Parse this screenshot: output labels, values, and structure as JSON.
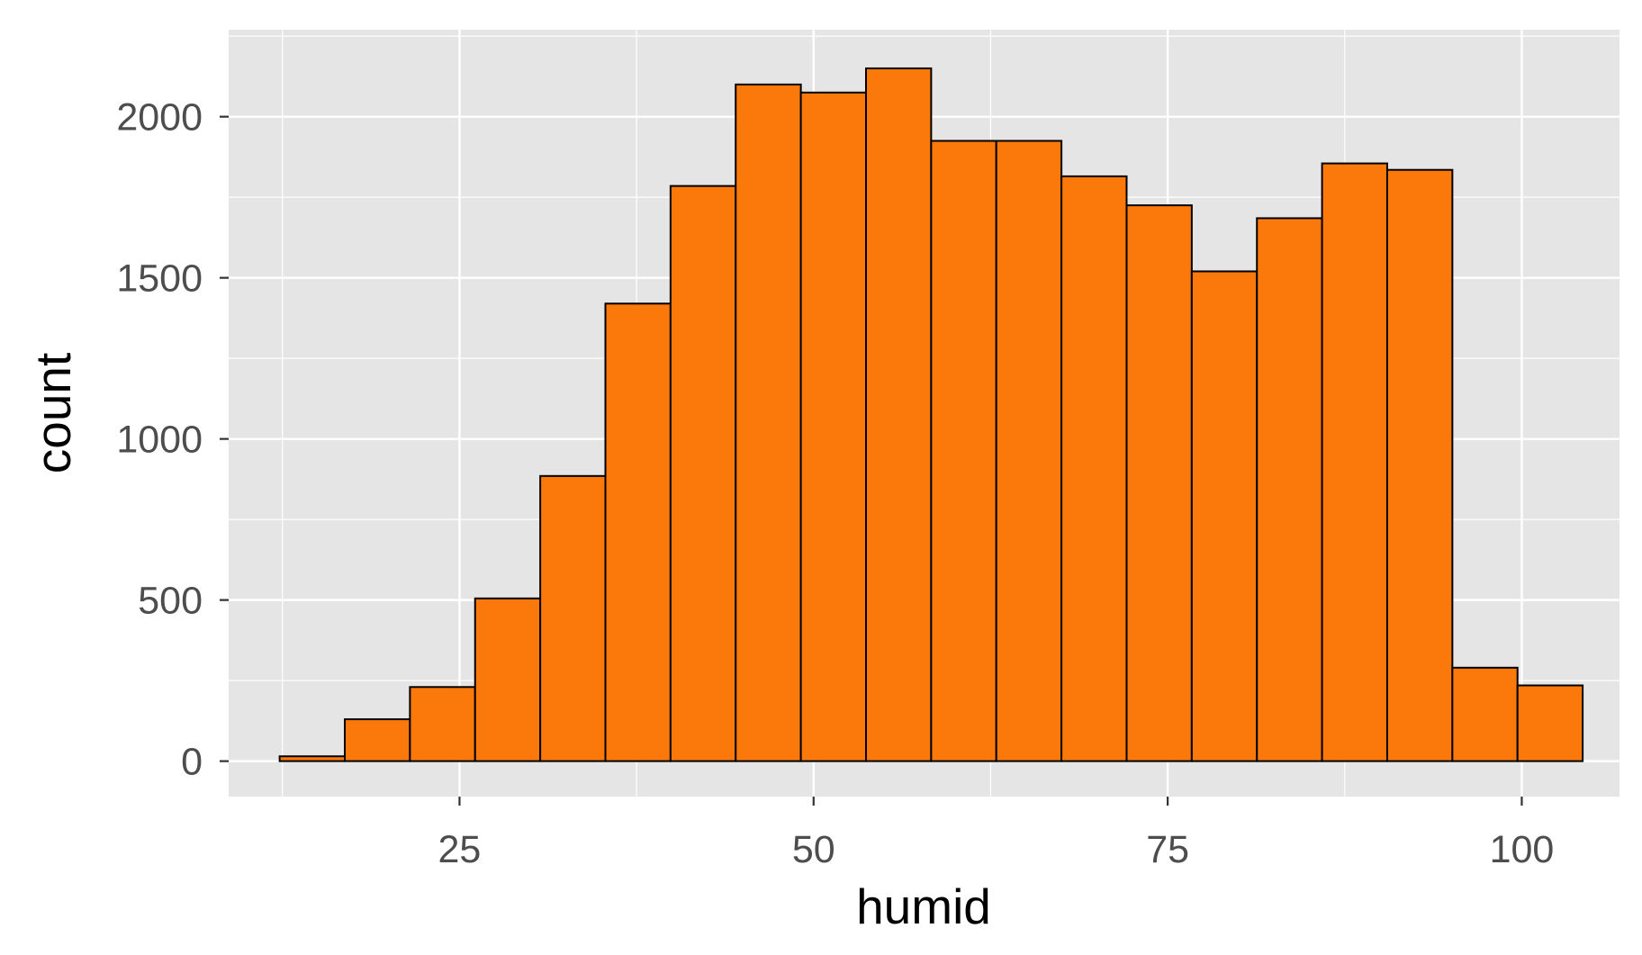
{
  "chart_data": {
    "type": "bar",
    "subtype": "histogram",
    "xlabel": "humid",
    "ylabel": "count",
    "xlim": [
      8.7,
      106.9
    ],
    "ylim": [
      -110,
      2270
    ],
    "x_ticks": [
      25,
      50,
      75,
      100
    ],
    "y_ticks": [
      0,
      500,
      1000,
      1500,
      2000
    ],
    "bins": [
      {
        "x0": 12.3,
        "x1": 16.9,
        "count": 15
      },
      {
        "x0": 16.9,
        "x1": 21.5,
        "count": 130
      },
      {
        "x0": 21.5,
        "x1": 26.1,
        "count": 230
      },
      {
        "x0": 26.1,
        "x1": 30.7,
        "count": 505
      },
      {
        "x0": 30.7,
        "x1": 35.3,
        "count": 885
      },
      {
        "x0": 35.3,
        "x1": 39.9,
        "count": 1420
      },
      {
        "x0": 39.9,
        "x1": 44.5,
        "count": 1785
      },
      {
        "x0": 44.5,
        "x1": 49.1,
        "count": 2100
      },
      {
        "x0": 49.1,
        "x1": 53.7,
        "count": 2075
      },
      {
        "x0": 53.7,
        "x1": 58.3,
        "count": 2150
      },
      {
        "x0": 58.3,
        "x1": 62.9,
        "count": 1925
      },
      {
        "x0": 62.9,
        "x1": 67.5,
        "count": 1925
      },
      {
        "x0": 67.5,
        "x1": 72.1,
        "count": 1815
      },
      {
        "x0": 72.1,
        "x1": 76.7,
        "count": 1725
      },
      {
        "x0": 76.7,
        "x1": 81.3,
        "count": 1520
      },
      {
        "x0": 81.3,
        "x1": 85.9,
        "count": 1685
      },
      {
        "x0": 85.9,
        "x1": 90.5,
        "count": 1855
      },
      {
        "x0": 90.5,
        "x1": 95.1,
        "count": 1835
      },
      {
        "x0": 95.1,
        "x1": 99.7,
        "count": 290
      },
      {
        "x0": 99.7,
        "x1": 104.3,
        "count": 235
      }
    ],
    "grid": true,
    "colors": {
      "panel_background": "#e5e5e5",
      "grid": "#ffffff",
      "bar_fill": "#fb790b",
      "bar_outline": "#000000",
      "tick_text": "#4d4d4d",
      "axis_title": "#000000"
    }
  }
}
